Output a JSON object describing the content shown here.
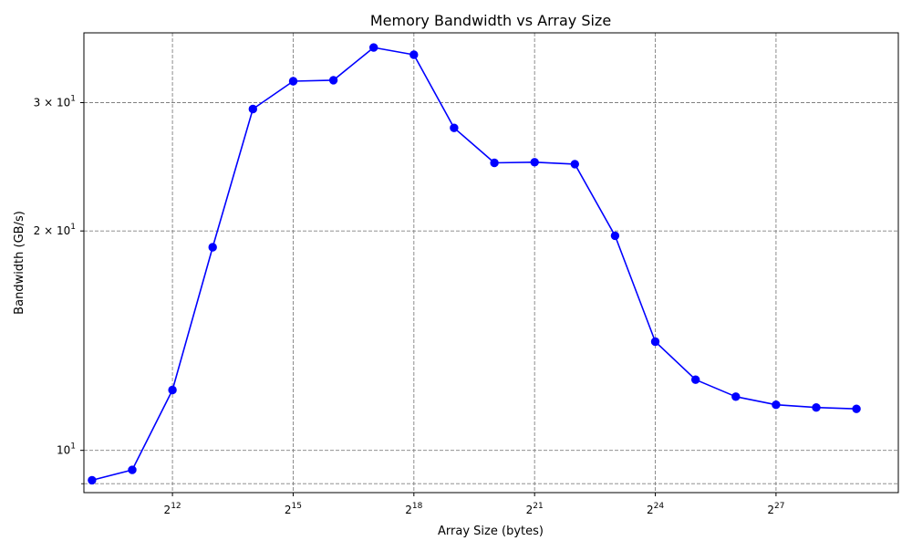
{
  "chart_data": {
    "type": "line",
    "title": "Memory Bandwidth vs Array Size",
    "xlabel": "Array Size (bytes)",
    "ylabel": "Bandwidth (GB/s)",
    "x_scale": "log2",
    "y_scale": "log10",
    "xlim": [
      891,
      1103476737
    ],
    "ylim": [
      8.75,
      37.4
    ],
    "x_ticks": [
      {
        "value": 4096,
        "base": "2",
        "exp": "12"
      },
      {
        "value": 32768,
        "base": "2",
        "exp": "15"
      },
      {
        "value": 262144,
        "base": "2",
        "exp": "18"
      },
      {
        "value": 2097152,
        "base": "2",
        "exp": "21"
      },
      {
        "value": 16777216,
        "base": "2",
        "exp": "24"
      },
      {
        "value": 134217728,
        "base": "2",
        "exp": "27"
      }
    ],
    "y_ticks_labeled": [
      {
        "value": 10,
        "mant": "10",
        "exp": "1"
      },
      {
        "value": 20,
        "mant": "2 × 10",
        "exp": "1"
      },
      {
        "value": 30,
        "mant": "3 × 10",
        "exp": "1"
      }
    ],
    "y_ticks_minor_unlabeled": [
      9
    ],
    "grid": true,
    "grid_style": "dashed",
    "series": [
      {
        "color": "#0000ff",
        "marker": "circle",
        "x": [
          1024,
          2048,
          4096,
          8192,
          16384,
          32768,
          65536,
          131072,
          262144,
          524288,
          1048576,
          2097152,
          4194304,
          8388608,
          16777216,
          33554432,
          67108864,
          134217728,
          268435456,
          536870912
        ],
        "y": [
          9.1,
          9.4,
          12.1,
          19.0,
          29.4,
          32.1,
          32.2,
          35.7,
          34.9,
          27.7,
          24.8,
          24.85,
          24.7,
          19.7,
          14.1,
          12.5,
          11.85,
          11.55,
          11.45,
          11.4
        ]
      }
    ]
  }
}
